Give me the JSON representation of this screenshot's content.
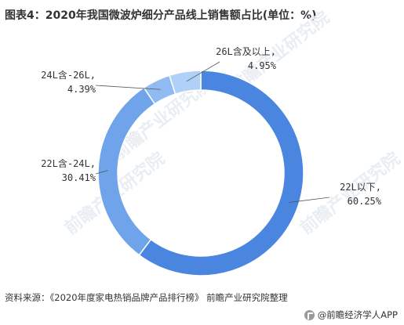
{
  "title": "图表4：2020年我国微波炉细分产品线上销售额占比(单位：%)",
  "source": "资料来源：《2020年度家电热销品牌产品排行榜》 前瞻产业研究院整理",
  "footer": {
    "logo_icon": "qianzhan-logo-icon",
    "text": "@前瞻经济学人APP"
  },
  "background_watermark": "前瞻产业研究院",
  "chart_data": {
    "type": "pie",
    "donut": true,
    "title": "图表4：2020年我国微波炉细分产品线上销售额占比(单位：%)",
    "categories": [
      "22L以下",
      "22L含-24L",
      "24L含-26L",
      "26L含及以上"
    ],
    "values": [
      60.25,
      30.41,
      4.39,
      4.95
    ],
    "value_labels": [
      "60.25%",
      "30.41%",
      "4.39%",
      "4.95%"
    ],
    "colors": [
      "#4a86e0",
      "#6fa4ea",
      "#8fbbf2",
      "#b0d0f8"
    ]
  }
}
